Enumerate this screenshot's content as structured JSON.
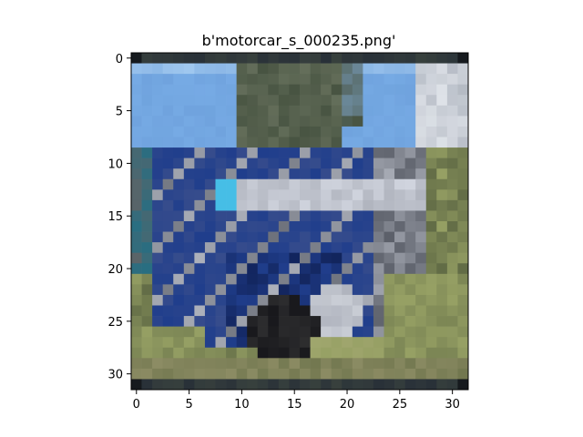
{
  "chart_data": {
    "type": "heatmap",
    "title": "b'motorcar_s_000235.png'",
    "xlabel": "",
    "ylabel": "",
    "xlim": [
      -0.5,
      31.5
    ],
    "ylim": [
      31.5,
      -0.5
    ],
    "x_ticks": [
      0,
      5,
      10,
      15,
      20,
      25,
      30
    ],
    "y_ticks": [
      0,
      5,
      10,
      15,
      20,
      25,
      30
    ],
    "x_tick_labels": [
      "0",
      "5",
      "10",
      "15",
      "20",
      "25",
      "30"
    ],
    "y_tick_labels": [
      "0",
      "5",
      "10",
      "15",
      "20",
      "25",
      "30"
    ],
    "grid": false,
    "image_size": [
      32,
      32
    ],
    "image_content": "blurred low-resolution photo of a blue vintage motor car on grass under blue sky and trees"
  }
}
